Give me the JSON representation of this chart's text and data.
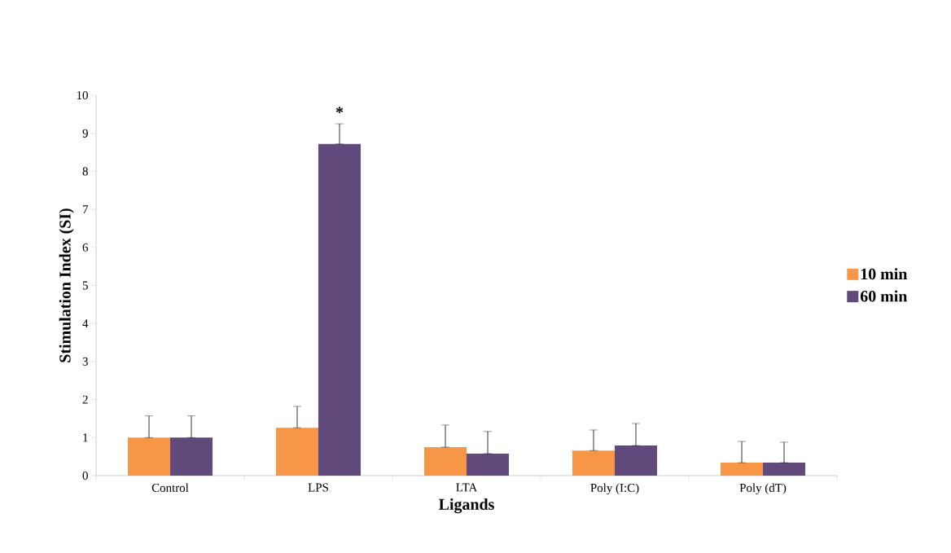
{
  "chart_data": {
    "type": "bar",
    "xlabel": "Ligands",
    "ylabel": "Stimulation Index (SI)",
    "categories": [
      "Control",
      "LPS",
      "LTA",
      "Poly (I:C)",
      "Poly (dT)"
    ],
    "series": [
      {
        "name": "10 min",
        "color": "#f79646",
        "values": [
          1.0,
          1.26,
          0.75,
          0.66,
          0.34
        ],
        "errors": [
          [
            1.0,
            1.57
          ],
          [
            1.26,
            1.82
          ],
          [
            0.75,
            1.33
          ],
          [
            0.66,
            1.2
          ],
          [
            0.34,
            0.9
          ]
        ]
      },
      {
        "name": "60 min",
        "color": "#604a7b",
        "values": [
          1.0,
          8.72,
          0.58,
          0.79,
          0.34
        ],
        "errors": [
          [
            1.0,
            1.57
          ],
          [
            8.72,
            9.25
          ],
          [
            0.58,
            1.16
          ],
          [
            0.79,
            1.37
          ],
          [
            0.34,
            0.88
          ]
        ]
      }
    ],
    "ylim": [
      0,
      10
    ],
    "yticks": [
      0,
      1,
      2,
      3,
      4,
      5,
      6,
      7,
      8,
      9,
      10
    ],
    "legend": "right",
    "annotations": [
      "*"
    ]
  }
}
